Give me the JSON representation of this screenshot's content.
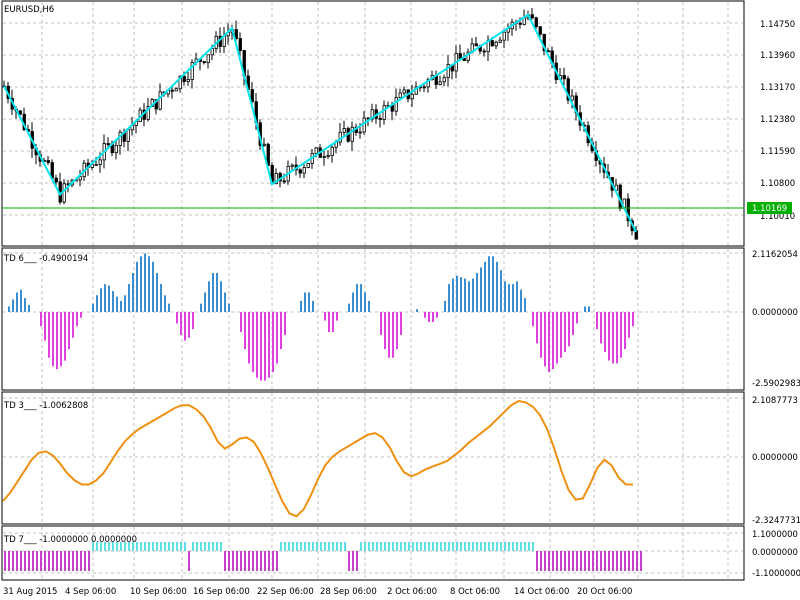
{
  "window": {
    "symbol_title": "EURUSD,H6"
  },
  "colors": {
    "background": "#ffffff",
    "grid": "#c0c0c0",
    "candles": "#000000",
    "zigzag": "#00e5ee",
    "current_price_line": "#00b000",
    "current_price_tag": "#00b000",
    "td6_positive": "#3a8fd0",
    "td6_negative": "#e040e0",
    "td3_line": "#f09010",
    "td7_positive": "#5fe0e8",
    "td7_negative": "#c640cc"
  },
  "main_chart": {
    "price_axis_labels": [
      "1.14750",
      "1.13960",
      "1.13170",
      "1.12380",
      "1.11590",
      "1.10800",
      "1.10010"
    ],
    "current_price": "1.10169",
    "ylim": [
      1.0985,
      1.1505
    ]
  },
  "indicator_td6": {
    "label": "TD 6___ -0.4900194",
    "axis_labels": [
      "2.1162054",
      "0.0000000",
      "-2.5902983"
    ],
    "ylim": [
      -2.5902983,
      2.1162054
    ]
  },
  "indicator_td3": {
    "label": "TD 3___ -1.0062808",
    "axis_labels": [
      "2.1087773",
      "0.0000000",
      "-2.3247731"
    ],
    "ylim": [
      -2.3247731,
      2.1087773
    ]
  },
  "indicator_td7": {
    "label": "TD 7___ -1.0000000 0.0000000",
    "axis_labels": [
      "1.1000000",
      "0.0000000",
      "-1.1000000"
    ]
  },
  "time_axis_labels": [
    "31 Aug 2015",
    "4 Sep 06:00",
    "10 Sep 06:00",
    "16 Sep 06:00",
    "22 Sep 06:00",
    "28 Sep 06:00",
    "2 Oct 06:00",
    "8 Oct 06:00",
    "14 Oct 06:00",
    "20 Oct 06:00"
  ],
  "chart_data": [
    {
      "type": "candlestick",
      "title": "EURUSD,H6",
      "ylim": [
        1.0985,
        1.1505
      ],
      "zigzag": [
        {
          "bar": 0,
          "price": 1.133
        },
        {
          "bar": 14,
          "price": 1.1087
        },
        {
          "bar": 57,
          "price": 1.146
        },
        {
          "bar": 67,
          "price": 1.111
        },
        {
          "bar": 131,
          "price": 1.149
        },
        {
          "bar": 158,
          "price": 1.1003
        }
      ],
      "current_price": 1.10169
    },
    {
      "type": "bar",
      "title": "TD 6___ -0.4900194",
      "ylim": [
        -2.5902983,
        2.1162054
      ],
      "values": [
        0.2,
        0.45,
        0.7,
        0.8,
        0.5,
        0.25,
        0,
        0,
        -0.5,
        -1.0,
        -1.6,
        -1.9,
        -2.0,
        -1.9,
        -1.7,
        -1.3,
        -0.9,
        -0.5,
        -0.2,
        0,
        0,
        0.3,
        0.6,
        0.85,
        1.0,
        0.95,
        0.75,
        0.55,
        0.4,
        0.6,
        1.0,
        1.4,
        1.8,
        2.0,
        2.1,
        2.0,
        1.8,
        1.4,
        1.0,
        0.6,
        0.3,
        0,
        -0.4,
        -0.8,
        -1.0,
        -0.9,
        -0.6,
        0,
        0.3,
        0.7,
        1.1,
        1.4,
        1.4,
        1.1,
        0.7,
        0.3,
        0,
        0,
        -0.7,
        -1.3,
        -1.8,
        -2.1,
        -2.3,
        -2.4,
        -2.4,
        -2.3,
        -2.1,
        -1.8,
        -1.3,
        -0.8,
        0,
        0,
        0,
        0.4,
        0.7,
        0.7,
        0.4,
        0,
        0,
        -0.3,
        -0.7,
        -0.7,
        -0.3,
        0,
        0,
        0.3,
        0.7,
        1.0,
        1.0,
        0.7,
        0.4,
        0,
        0,
        -0.8,
        -1.3,
        -1.6,
        -1.6,
        -1.3,
        -0.8,
        0,
        0,
        0,
        0.1,
        0,
        -0.2,
        -0.35,
        -0.35,
        -0.2,
        0,
        0.4,
        1.0,
        1.2,
        1.3,
        1.25,
        1.2,
        1.1,
        1.2,
        1.4,
        1.6,
        1.8,
        2.0,
        2.0,
        1.8,
        1.5,
        1.1,
        1.0,
        1.0,
        1.1,
        0.8,
        0.5,
        0,
        -0.5,
        -1.1,
        -1.6,
        -1.9,
        -2.1,
        -2.0,
        -1.8,
        -1.6,
        -1.4,
        -1.2,
        -0.8,
        -0.4,
        0,
        0.2,
        0.2,
        0,
        -0.6,
        -1.1,
        -1.4,
        -1.7,
        -1.8,
        -1.8,
        -1.6,
        -1.3,
        -0.9,
        -0.5
      ]
    },
    {
      "type": "line",
      "title": "TD 3___ -1.0062808",
      "ylim": [
        -2.3247731,
        2.1087773
      ],
      "values": [
        -1.6,
        -1.3,
        -0.9,
        -0.5,
        -0.1,
        0.15,
        0.2,
        0.05,
        -0.25,
        -0.6,
        -0.85,
        -1.0,
        -1.0,
        -0.85,
        -0.6,
        -0.2,
        0.2,
        0.55,
        0.8,
        1.0,
        1.15,
        1.3,
        1.45,
        1.6,
        1.75,
        1.85,
        1.85,
        1.7,
        1.45,
        1.05,
        0.55,
        0.3,
        0.45,
        0.65,
        0.7,
        0.55,
        0.15,
        -0.4,
        -1.0,
        -1.6,
        -2.05,
        -2.15,
        -1.9,
        -1.4,
        -0.8,
        -0.3,
        0.0,
        0.2,
        0.35,
        0.5,
        0.65,
        0.8,
        0.85,
        0.7,
        0.35,
        -0.15,
        -0.55,
        -0.7,
        -0.6,
        -0.45,
        -0.35,
        -0.25,
        -0.15,
        0.05,
        0.25,
        0.5,
        0.7,
        0.9,
        1.1,
        1.35,
        1.6,
        1.85,
        2.0,
        1.95,
        1.8,
        1.5,
        1.0,
        0.3,
        -0.5,
        -1.2,
        -1.55,
        -1.5,
        -1.0,
        -0.4,
        -0.1,
        -0.3,
        -0.75,
        -1.0,
        -1.0
      ]
    },
    {
      "type": "bar",
      "title": "TD 7___ -1.0000000 0.0000000",
      "series": [
        {
          "name": "1",
          "values": [
            -1,
            -1,
            -1,
            -1,
            -1,
            -1,
            -1,
            -1,
            -1,
            -1,
            -1,
            -1,
            -1,
            -1,
            -1,
            -1,
            -1,
            -1,
            -1,
            -1,
            -1,
            -1,
            0.55,
            0.55,
            0.55,
            0.55,
            0.55,
            0.55,
            0.55,
            0.55,
            0.55,
            0.55,
            0.55,
            0.55,
            0.55,
            0.55,
            0.55,
            0.55,
            0.55,
            0.55,
            0.55,
            0.55,
            0.55,
            0.55,
            0.55,
            0.55,
            -1,
            0.55,
            0.55,
            0.55,
            0.55,
            0.55,
            0.55,
            0.55,
            0.55,
            -1,
            -1,
            -1,
            -1,
            -1,
            -1,
            -1,
            -1,
            -1,
            -1,
            -1,
            -1,
            -1,
            -1,
            0.55,
            0.55,
            0.55,
            0.55,
            0.55,
            0.55,
            0.55,
            0.55,
            0.55,
            0.55,
            0.55,
            0.55,
            0.55,
            0.55,
            0.55,
            0.55,
            0.55,
            -1,
            -1,
            -1,
            0.55,
            0.55,
            0.55,
            0.55,
            0.55,
            0.55,
            0.55,
            0.55,
            0.55,
            0.55,
            0.55,
            0.55,
            0.55,
            0.55,
            0.55,
            0.55,
            0.55,
            0.55,
            0.55,
            0.55,
            0.55,
            0.55,
            0.55,
            0.55,
            0.55,
            0.55,
            0.55,
            0.55,
            0.55,
            0.55,
            0.55,
            0.55,
            0.55,
            0.55,
            0.55,
            0.55,
            0.55,
            0.55,
            0.55,
            0.55,
            0.55,
            0.55,
            0.55,
            0.55,
            -1,
            -1,
            -1,
            -1,
            -1,
            -1,
            -1,
            -1,
            -1,
            -1,
            -1,
            -1,
            -1,
            -1,
            -1,
            -1,
            -1,
            -1,
            -1,
            -1,
            -1,
            -1,
            -1,
            -1,
            -1,
            -1,
            -1
          ]
        }
      ]
    }
  ]
}
